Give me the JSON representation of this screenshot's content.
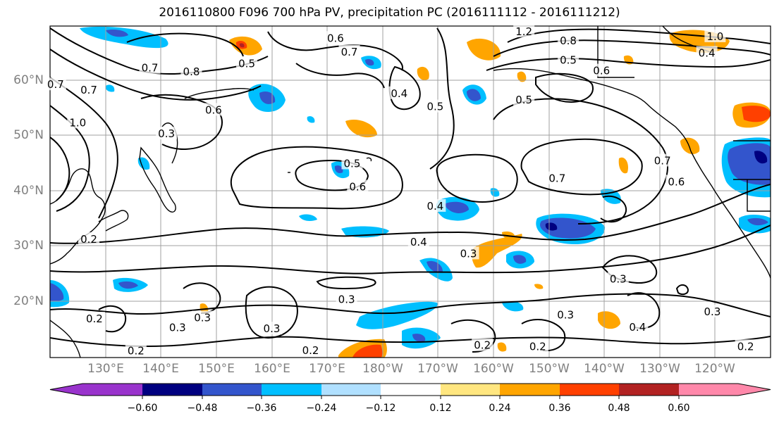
{
  "title": "2016110800 F096 700 hPa PV, precipitation PC (2016111112 - 2016111212)",
  "map": {
    "latitude_labels": [
      "60°N",
      "50°N",
      "40°N",
      "30°N",
      "20°N"
    ],
    "longitude_labels": [
      "130°E",
      "140°E",
      "150°E",
      "160°E",
      "170°E",
      "180°W",
      "170°W",
      "160°W",
      "150°W",
      "140°W",
      "130°W",
      "120°W"
    ],
    "extent": {
      "lon_min": 120,
      "lon_max": 250,
      "lat_min": 10,
      "lat_max": 70
    },
    "contour_field": "700 hPa PV",
    "fill_field": "precipitation PC",
    "contour_labels": [
      {
        "text": "0.6",
        "lon": 171.5,
        "lat": 67.8
      },
      {
        "text": "0.7",
        "lon": 174.0,
        "lat": 65.3
      },
      {
        "text": "1.2",
        "lon": 205.5,
        "lat": 69.0
      },
      {
        "text": "0.8",
        "lon": 213.5,
        "lat": 67.3
      },
      {
        "text": "1.0",
        "lon": 240.0,
        "lat": 68.1
      },
      {
        "text": "0.4",
        "lon": 238.5,
        "lat": 65.1
      },
      {
        "text": "0.5",
        "lon": 213.5,
        "lat": 63.8
      },
      {
        "text": "0.6",
        "lon": 219.5,
        "lat": 61.9
      },
      {
        "text": "0.5",
        "lon": 155.5,
        "lat": 63.2
      },
      {
        "text": "0.7",
        "lon": 138.0,
        "lat": 62.4
      },
      {
        "text": "0.8",
        "lon": 145.5,
        "lat": 61.7
      },
      {
        "text": "0.4",
        "lon": 183.0,
        "lat": 57.8
      },
      {
        "text": "0.5",
        "lon": 189.5,
        "lat": 55.4
      },
      {
        "text": "0.5",
        "lon": 205.5,
        "lat": 56.6
      },
      {
        "text": "0.7",
        "lon": 121.0,
        "lat": 59.4
      },
      {
        "text": "0.7",
        "lon": 127.0,
        "lat": 58.4
      },
      {
        "text": "0.6",
        "lon": 149.5,
        "lat": 54.8
      },
      {
        "text": "1.0",
        "lon": 125.0,
        "lat": 52.5
      },
      {
        "text": "0.3",
        "lon": 141.0,
        "lat": 50.5
      },
      {
        "text": "0.5",
        "lon": 174.5,
        "lat": 45.1
      },
      {
        "text": "0.6",
        "lon": 175.5,
        "lat": 40.9
      },
      {
        "text": "0.7",
        "lon": 211.5,
        "lat": 42.4
      },
      {
        "text": "0.7",
        "lon": 230.5,
        "lat": 45.6
      },
      {
        "text": "0.6",
        "lon": 233.0,
        "lat": 41.8
      },
      {
        "text": "0.4",
        "lon": 189.5,
        "lat": 37.4
      },
      {
        "text": "0.2",
        "lon": 127.0,
        "lat": 31.4
      },
      {
        "text": "0.4",
        "lon": 186.5,
        "lat": 30.9
      },
      {
        "text": "0.3",
        "lon": 195.5,
        "lat": 28.8
      },
      {
        "text": "0.3",
        "lon": 222.5,
        "lat": 24.2
      },
      {
        "text": "0.3",
        "lon": 173.5,
        "lat": 20.5
      },
      {
        "text": "0.3",
        "lon": 147.5,
        "lat": 17.2
      },
      {
        "text": "0.3",
        "lon": 143.0,
        "lat": 15.4
      },
      {
        "text": "0.3",
        "lon": 160.0,
        "lat": 15.2
      },
      {
        "text": "0.2",
        "lon": 128.0,
        "lat": 17.0
      },
      {
        "text": "0.4",
        "lon": 226.0,
        "lat": 15.5
      },
      {
        "text": "0.3",
        "lon": 213.0,
        "lat": 17.7
      },
      {
        "text": "0.3",
        "lon": 239.5,
        "lat": 18.3
      },
      {
        "text": "0.2",
        "lon": 208.0,
        "lat": 12.0
      },
      {
        "text": "0.2",
        "lon": 198.0,
        "lat": 12.2
      },
      {
        "text": "0.2",
        "lon": 135.5,
        "lat": 11.2
      },
      {
        "text": "0.2",
        "lon": 167.0,
        "lat": 11.3
      },
      {
        "text": "0.2",
        "lon": 245.5,
        "lat": 12.0
      }
    ]
  },
  "colorbar": {
    "tick_labels": [
      "−0.60",
      "−0.48",
      "−0.36",
      "−0.24",
      "−0.12",
      "0.12",
      "0.24",
      "0.36",
      "0.48",
      "0.60"
    ],
    "levels": [
      -0.6,
      -0.48,
      -0.36,
      -0.24,
      -0.12,
      0.12,
      0.24,
      0.36,
      0.48,
      0.6
    ],
    "colors": [
      "#9933cc",
      "#000080",
      "#3355cc",
      "#00bfff",
      "#b0e0ff",
      "#ffffff",
      "#ffe680",
      "#ffa500",
      "#ff4000",
      "#b22222",
      "#ff88aa"
    ],
    "extend": "both"
  }
}
